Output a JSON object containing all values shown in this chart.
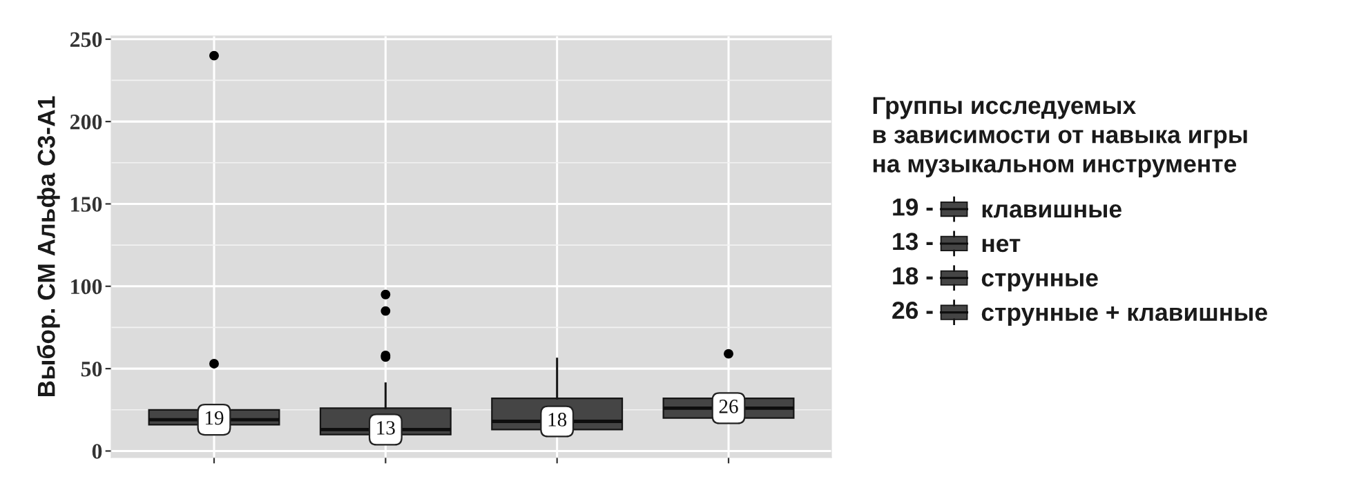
{
  "chart_data": {
    "type": "box",
    "ylabel": "Выбор. СМ Альфа С3-А1",
    "legend_title": "Группы исследуемых\nв зависимости от навыка игры\nна музыкальном инструменте",
    "categories": [
      null,
      null,
      null,
      null
    ],
    "series": [
      {
        "name": "клавишные",
        "color": "#454545",
        "boxes": [
          {
            "low": null,
            "q1": 16,
            "median": 19,
            "q3": 25,
            "high": null,
            "outliers": [
              240,
              53
            ]
          },
          null,
          null,
          null
        ],
        "value_labels": [
          "19",
          null,
          null,
          null
        ]
      },
      {
        "name": "нет",
        "color": "#454545",
        "boxes": [
          null,
          {
            "low": null,
            "q1": 10,
            "median": 13,
            "q3": 26,
            "high": 41,
            "outliers": [
              95,
              85,
              58,
              57
            ]
          },
          null,
          null
        ],
        "value_labels": [
          null,
          "13",
          null,
          null
        ]
      },
      {
        "name": "струнные",
        "color": "#454545",
        "boxes": [
          null,
          null,
          {
            "low": null,
            "q1": 13,
            "median": 18,
            "q3": 32,
            "high": 56
          },
          null
        ],
        "value_labels": [
          null,
          null,
          "18",
          null
        ]
      },
      {
        "name": "струнные + клавишные",
        "color": "#454545",
        "boxes": [
          null,
          null,
          null,
          {
            "low": null,
            "q1": 20,
            "median": 26,
            "q3": 32,
            "high": null,
            "outliers": [
              59
            ]
          }
        ],
        "value_labels": [
          null,
          null,
          null,
          "26"
        ]
      }
    ],
    "ylim": [
      -4,
      252
    ],
    "yticks": [
      0,
      50,
      100,
      150,
      200,
      250
    ],
    "grid": true,
    "legend": "right",
    "tick_labels": "y",
    "annotations": [
      "19 -",
      "13 -",
      "18 -",
      "26 -"
    ]
  }
}
